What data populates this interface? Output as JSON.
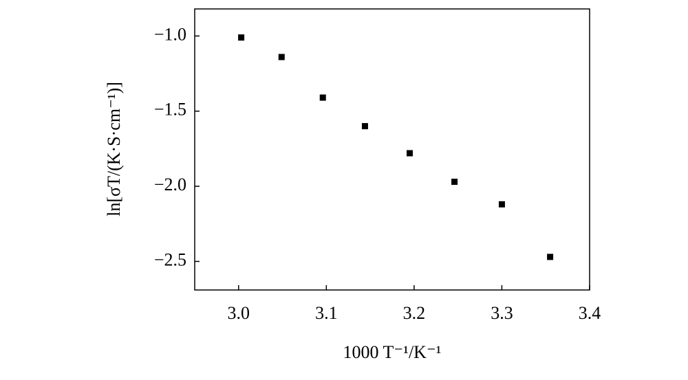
{
  "chart_data": {
    "type": "scatter",
    "x_label": "1000 T⁻¹/K⁻¹",
    "y_label": "ln[σT/(K·S·cm⁻¹)]",
    "x": [
      3.003,
      3.049,
      3.096,
      3.144,
      3.195,
      3.246,
      3.3,
      3.355
    ],
    "values": [
      -1.01,
      -1.14,
      -1.41,
      -1.6,
      -1.78,
      -1.97,
      -2.12,
      -2.47
    ],
    "color": "#000000",
    "xlim": [
      2.95,
      3.4
    ],
    "ylim": [
      -2.69,
      -0.82
    ],
    "xticks": [
      {
        "value": 3.0,
        "label": "3.0"
      },
      {
        "value": 3.1,
        "label": "3.1"
      },
      {
        "value": 3.2,
        "label": "3.2"
      },
      {
        "value": 3.3,
        "label": "3.3"
      },
      {
        "value": 3.4,
        "label": "3.4"
      }
    ],
    "yticks": [
      {
        "value": -1.0,
        "label": "−1.0"
      },
      {
        "value": -1.5,
        "label": "−1.5"
      },
      {
        "value": -2.0,
        "label": "−2.0"
      },
      {
        "value": -2.5,
        "label": "−2.5"
      }
    ],
    "grid": false
  }
}
